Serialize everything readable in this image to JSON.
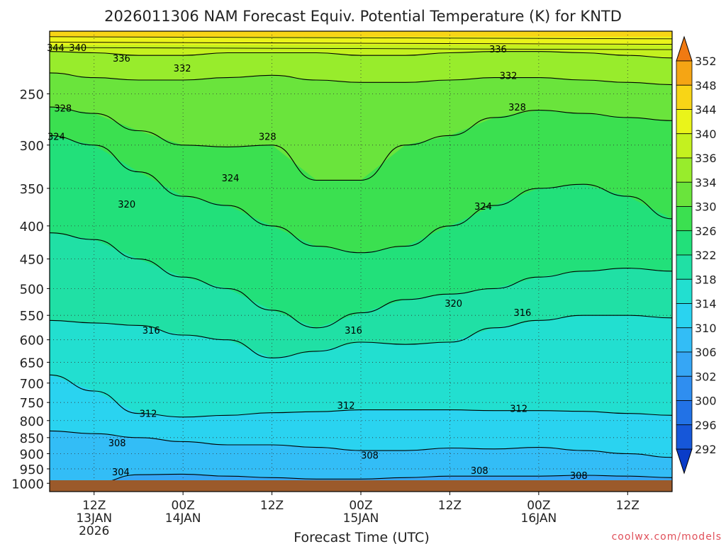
{
  "chart_data": {
    "type": "heatmap",
    "title": "2026011306 NAM Forecast Equiv. Potential Temperature (K) for KNTD",
    "xlabel": "Forecast Time (UTC)",
    "ylabel": "",
    "x_unit": "hours since 2026-01-13 06Z",
    "xlim": [
      0,
      84
    ],
    "ylim": [
      1030,
      200
    ],
    "x_ticks": [
      {
        "h": 6,
        "lines": [
          "12Z",
          "13JAN",
          "2026"
        ]
      },
      {
        "h": 18,
        "lines": [
          "00Z",
          "14JAN"
        ]
      },
      {
        "h": 30,
        "lines": [
          "12Z"
        ]
      },
      {
        "h": 42,
        "lines": [
          "00Z",
          "15JAN"
        ]
      },
      {
        "h": 54,
        "lines": [
          "12Z"
        ]
      },
      {
        "h": 66,
        "lines": [
          "00Z",
          "16JAN"
        ]
      },
      {
        "h": 78,
        "lines": [
          "12Z"
        ]
      }
    ],
    "y_ticks": [
      "250",
      "300",
      "350",
      "400",
      "450",
      "500",
      "550",
      "600",
      "650",
      "700",
      "750",
      "800",
      "850",
      "900",
      "950",
      "1000"
    ],
    "colorbar": {
      "levels": [
        "292",
        "296",
        "300",
        "302",
        "306",
        "310",
        "314",
        "318",
        "322",
        "326",
        "330",
        "334",
        "336",
        "340",
        "344",
        "348",
        "352"
      ],
      "colors": [
        "#0a3cc8",
        "#1657d9",
        "#2272e6",
        "#2f8ef0",
        "#36a6f5",
        "#33bdf6",
        "#2ad3f0",
        "#22dfd0",
        "#20e0a5",
        "#22e07a",
        "#3be050",
        "#6ae43c",
        "#98ec2c",
        "#c4f11f",
        "#eaf41a",
        "#f8d516",
        "#f5a514",
        "#f07a12"
      ]
    },
    "isotherm_series": [
      {
        "k": 304,
        "p": [
          1000,
          1000,
          970,
          968,
          975,
          980,
          985,
          985,
          980,
          975,
          975,
          975,
          972,
          975,
          980
        ]
      },
      {
        "k": 308,
        "p": [
          830,
          838,
          850,
          862,
          872,
          872,
          880,
          890,
          890,
          882,
          885,
          880,
          890,
          900,
          912
        ]
      },
      {
        "k": 312,
        "p": [
          680,
          720,
          780,
          790,
          785,
          778,
          775,
          770,
          770,
          770,
          772,
          772,
          774,
          780,
          785
        ]
      },
      {
        "k": 316,
        "p": [
          560,
          565,
          570,
          590,
          600,
          640,
          625,
          605,
          610,
          605,
          575,
          560,
          550,
          550,
          555
        ]
      },
      {
        "k": 320,
        "p": [
          410,
          420,
          450,
          480,
          500,
          540,
          575,
          545,
          520,
          510,
          500,
          480,
          470,
          465,
          470
        ]
      },
      {
        "k": 324,
        "p": [
          290,
          300,
          330,
          360,
          372,
          400,
          430,
          440,
          430,
          400,
          372,
          350,
          345,
          360,
          390
        ]
      },
      {
        "k": 328,
        "p": [
          262,
          268,
          285,
          300,
          302,
          300,
          340,
          340,
          300,
          290,
          272,
          265,
          268,
          272,
          275
        ]
      },
      {
        "k": 332,
        "p": [
          232,
          236,
          238,
          238,
          236,
          234,
          238,
          240,
          240,
          238,
          236,
          236,
          238,
          240,
          242
        ]
      },
      {
        "k": 336,
        "p": [
          215,
          216,
          218,
          218,
          216,
          216,
          216,
          218,
          218,
          216,
          215,
          215,
          216,
          218,
          220
        ]
      }
    ],
    "contour_labels": [
      {
        "text": "344",
        "h": 0.8,
        "p": 212
      },
      {
        "text": "340",
        "h": 3.8,
        "p": 212
      },
      {
        "text": "336",
        "h": 9.7,
        "p": 220
      },
      {
        "text": "332",
        "h": 17.9,
        "p": 228
      },
      {
        "text": "336",
        "h": 60.5,
        "p": 213
      },
      {
        "text": "332",
        "h": 61.9,
        "p": 234
      },
      {
        "text": "328",
        "h": 1.8,
        "p": 263
      },
      {
        "text": "328",
        "h": 63.1,
        "p": 262
      },
      {
        "text": "324",
        "h": 0.9,
        "p": 291
      },
      {
        "text": "328",
        "h": 29.4,
        "p": 291
      },
      {
        "text": "324",
        "h": 24.4,
        "p": 337
      },
      {
        "text": "320",
        "h": 10.4,
        "p": 370
      },
      {
        "text": "324",
        "h": 58.5,
        "p": 373
      },
      {
        "text": "320",
        "h": 54.5,
        "p": 527
      },
      {
        "text": "316",
        "h": 13.7,
        "p": 580
      },
      {
        "text": "316",
        "h": 41.0,
        "p": 580
      },
      {
        "text": "316",
        "h": 63.8,
        "p": 544
      },
      {
        "text": "312",
        "h": 13.3,
        "p": 780
      },
      {
        "text": "312",
        "h": 40.0,
        "p": 757
      },
      {
        "text": "312",
        "h": 63.3,
        "p": 766
      },
      {
        "text": "308",
        "h": 9.1,
        "p": 865
      },
      {
        "text": "308",
        "h": 43.2,
        "p": 905
      },
      {
        "text": "308",
        "h": 58.0,
        "p": 955
      },
      {
        "text": "308",
        "h": 71.4,
        "p": 972
      },
      {
        "text": "304",
        "h": 9.6,
        "p": 960
      }
    ]
  },
  "footer": {
    "credit": "coolwx.com/models"
  }
}
